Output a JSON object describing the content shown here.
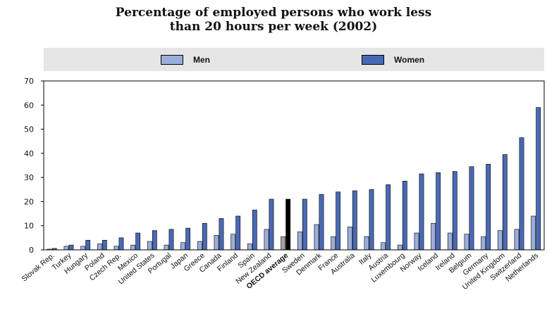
{
  "chart_data": {
    "type": "bar",
    "title": [
      "Percentage of employed persons who work less",
      "than 20 hours per week (2002)"
    ],
    "xlabel": "",
    "ylabel": "",
    "ylim": [
      0,
      70
    ],
    "yticks": [
      0,
      10,
      20,
      30,
      40,
      50,
      60,
      70
    ],
    "legend_position": "top",
    "highlight_category": "OECD average",
    "highlight_color": "#000000",
    "categories": [
      "Slovak Rep.",
      "Turkey",
      "Hungary",
      "Poland",
      "Czech Rep.",
      "Mexico",
      "United States",
      "Portugal",
      "Japan",
      "Greece",
      "Canada",
      "Finland",
      "Spain",
      "New Zealand",
      "OECD average",
      "Sweden",
      "Denmark",
      "France",
      "Australia",
      "Italy",
      "Austria",
      "Luxembourg",
      "Norway",
      "Iceland",
      "Ireland",
      "Belgium",
      "Germany",
      "United Kingdom",
      "Switzerland",
      "Netherlands"
    ],
    "series": [
      {
        "name": "Men",
        "color": "#9aaedb",
        "values": [
          0.3,
          1.5,
          1.5,
          2.5,
          1.5,
          2,
          3.5,
          2,
          3,
          3.5,
          6,
          6.5,
          2.5,
          8.5,
          5.5,
          7.5,
          10.5,
          5.5,
          9.5,
          5.5,
          3,
          2,
          7,
          11,
          7,
          6.5,
          5.5,
          8,
          8.5,
          14
        ]
      },
      {
        "name": "Women",
        "color": "#4a69b5",
        "values": [
          0.6,
          2,
          4,
          4,
          5,
          7,
          8,
          8.5,
          9,
          11,
          13,
          14,
          16.5,
          21,
          21,
          21,
          23,
          24,
          24.5,
          25,
          27,
          28.5,
          31.5,
          32,
          32.5,
          34.5,
          35.5,
          39.5,
          46.5,
          59
        ]
      }
    ]
  }
}
